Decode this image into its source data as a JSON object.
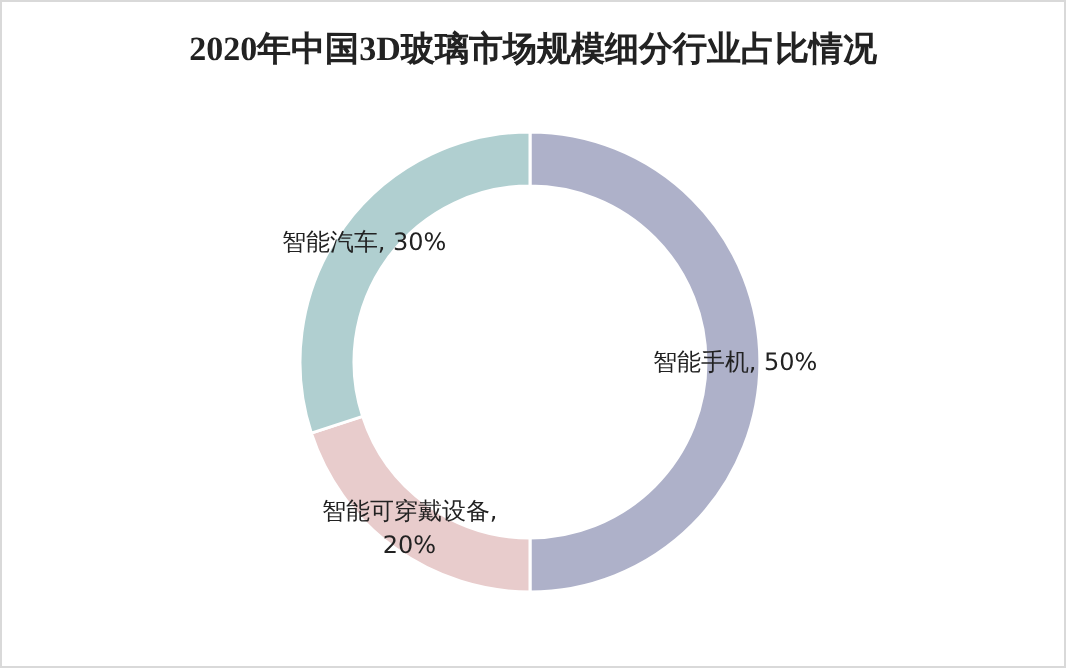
{
  "chart_data": {
    "type": "donut",
    "title": "2020年中国3D玻璃市场规模细分行业占比情况",
    "categories": [
      "智能手机",
      "智能可穿戴设备",
      "智能汽车"
    ],
    "values": [
      50,
      20,
      30
    ],
    "value_labels": [
      ", 50%",
      ", 20%",
      ", 30%"
    ],
    "colors": [
      "#aeb1c9",
      "#e8cccc",
      "#b0cfd0"
    ]
  }
}
